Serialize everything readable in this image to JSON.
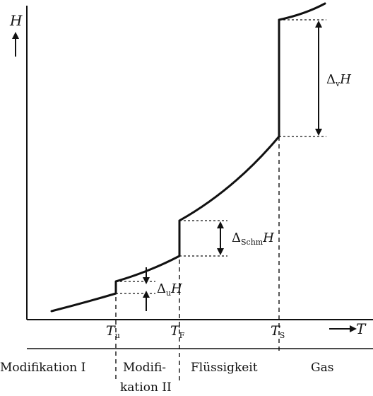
{
  "axes": {
    "y_label": "H",
    "x_label": "T"
  },
  "ticks": [
    {
      "main": "T",
      "sub": "u"
    },
    {
      "main": "T",
      "sub": "F"
    },
    {
      "main": "T",
      "sub": "S"
    }
  ],
  "deltas": {
    "u": {
      "prefix": "Δ",
      "sub": "u",
      "main": "H"
    },
    "schm": {
      "prefix": "Δ",
      "sub": "Schm",
      "main": "H"
    },
    "v": {
      "prefix": "Δ",
      "sub": "v",
      "main": "H"
    }
  },
  "phases": {
    "mod1": "Modifikation I",
    "mod2_line1": "Modifi-",
    "mod2_line2": "kation II",
    "liquid": "Flüssigkeit",
    "gas": "Gas"
  }
}
